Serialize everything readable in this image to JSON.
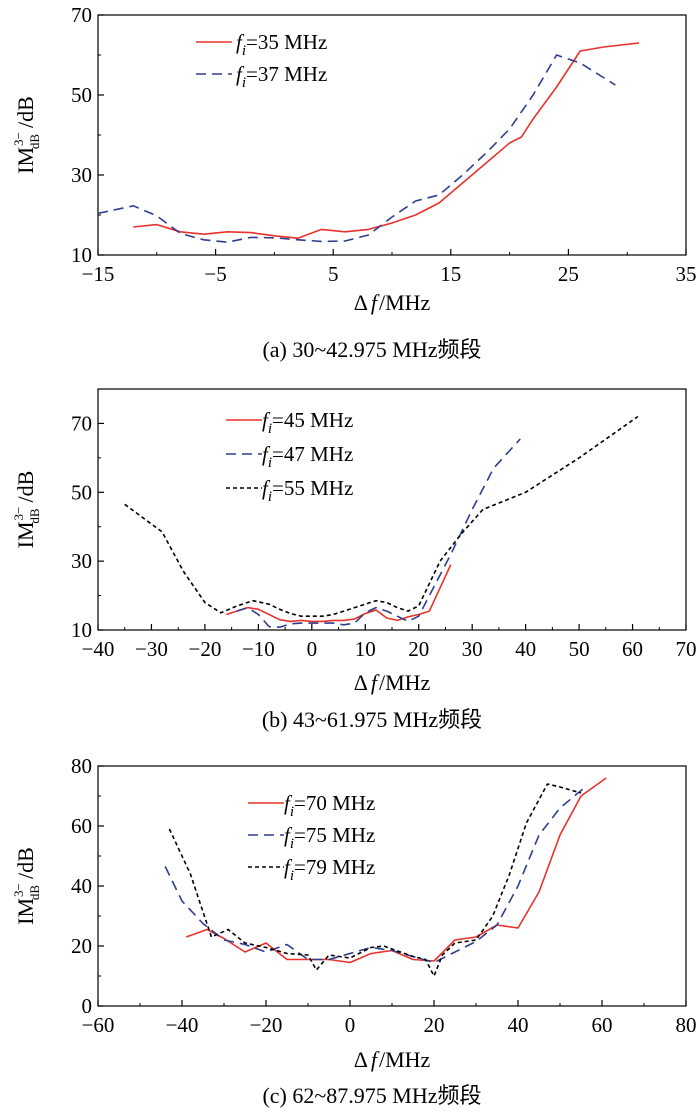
{
  "chart_data": [
    {
      "type": "line",
      "caption": "(a) 30~42.975 MHz频段",
      "xlabel_delta": "Δ",
      "xlabel_f": "f",
      "xlabel_unit": "/MHz",
      "ylabel_main": "IM",
      "ylabel_sup": "3−",
      "ylabel_sub": "dB",
      "ylabel_unit": "/dB",
      "xlim": [
        -15,
        35
      ],
      "ylim": [
        10,
        70
      ],
      "xticks": [
        -15,
        -5,
        5,
        15,
        25,
        35
      ],
      "xtick_labels": [
        "−15",
        "−5",
        "5",
        "15",
        "25",
        "35"
      ],
      "yticks": [
        10,
        30,
        50,
        70
      ],
      "ytick_labels": [
        "10",
        "30",
        "50",
        "70"
      ],
      "legend_prefix": "f",
      "legend_sub": "i",
      "series": [
        {
          "name": "=35 MHz",
          "color": "#e8322b",
          "dash": "solid",
          "x": [
            -12,
            -10,
            -8,
            -6,
            -4,
            -2,
            0,
            2,
            4,
            6,
            8,
            10,
            12,
            14,
            16,
            18,
            20,
            21,
            22,
            24,
            26,
            28,
            31
          ],
          "y": [
            17,
            17.6,
            15.8,
            15.2,
            15.8,
            15.6,
            14.8,
            14.2,
            16.4,
            15.8,
            16.4,
            18,
            20,
            23,
            28,
            33,
            38,
            39.5,
            44,
            52,
            61,
            62,
            63
          ]
        },
        {
          "name": "=37 MHz",
          "color": "#2f3e8f",
          "dash": "dash",
          "x": [
            -15,
            -12,
            -10,
            -8,
            -6,
            -4,
            -2,
            0,
            2,
            4,
            6,
            8,
            10,
            12,
            14,
            16,
            18,
            20,
            22,
            24,
            26,
            29
          ],
          "y": [
            20.4,
            22.3,
            19.8,
            15.4,
            13.8,
            13.2,
            14.4,
            14.3,
            13.8,
            13.4,
            13.5,
            15,
            19.5,
            23.5,
            25,
            30,
            35.5,
            41.5,
            50,
            60,
            58,
            52.5
          ]
        }
      ]
    },
    {
      "type": "line",
      "caption": "(b) 43~61.975 MHz频段",
      "xlabel_delta": "Δ",
      "xlabel_f": "f",
      "xlabel_unit": "/MHz",
      "ylabel_main": "IM",
      "ylabel_sup": "3−",
      "ylabel_sub": "dB",
      "ylabel_unit": "/dB",
      "xlim": [
        -40,
        70
      ],
      "ylim": [
        10,
        80
      ],
      "xticks": [
        -40,
        -30,
        -20,
        -10,
        0,
        10,
        20,
        30,
        40,
        50,
        60,
        70
      ],
      "xtick_labels": [
        "−40",
        "−30",
        "−20",
        "−10",
        "0",
        "10",
        "20",
        "30",
        "40",
        "50",
        "60",
        "70"
      ],
      "yticks": [
        10,
        30,
        50,
        70
      ],
      "ytick_labels": [
        "10",
        "30",
        "50",
        "70"
      ],
      "legend_prefix": "f",
      "legend_sub": "i",
      "series": [
        {
          "name": "=45 MHz",
          "color": "#e8322b",
          "dash": "solid",
          "x": [
            -16,
            -12,
            -10,
            -8,
            -6,
            -4,
            -2,
            0,
            2,
            4,
            6,
            8,
            10,
            12,
            14,
            16,
            18,
            20,
            22,
            26
          ],
          "y": [
            14.5,
            16.5,
            16,
            14.5,
            13,
            12.5,
            12.8,
            12.5,
            12.5,
            12.8,
            12.8,
            13.2,
            14.8,
            15.8,
            13.5,
            12.8,
            13.8,
            14.5,
            15.5,
            29
          ]
        },
        {
          "name": "=47 MHz",
          "color": "#2f3e8f",
          "dash": "dash",
          "x": [
            -14,
            -12,
            -10,
            -8,
            -6,
            -4,
            -2,
            0,
            2,
            4,
            6,
            8,
            10,
            12,
            14,
            16,
            18,
            20,
            26,
            30,
            34,
            39
          ],
          "y": [
            15.5,
            16.5,
            14.5,
            11,
            10.8,
            11.8,
            12,
            12,
            12,
            12,
            11.5,
            12,
            15,
            16.5,
            15.5,
            14,
            12.5,
            14,
            32,
            45,
            57,
            65.5
          ]
        },
        {
          "name": "=55 MHz",
          "color": "#000000",
          "dash": "dot",
          "x": [
            -35,
            -28,
            -24,
            -20,
            -17,
            -14,
            -11,
            -8,
            -6,
            -4,
            -2,
            0,
            2,
            4,
            6,
            8,
            10,
            12,
            14,
            16,
            18,
            20,
            24,
            28,
            32,
            40,
            50,
            61
          ],
          "y": [
            46.5,
            38.5,
            27,
            18,
            15,
            17,
            18.5,
            17.5,
            16,
            14.8,
            14,
            14,
            14,
            14.5,
            15.5,
            16.5,
            17.5,
            18.5,
            18,
            16.5,
            15.5,
            17,
            30,
            38,
            45,
            50,
            60,
            72
          ]
        }
      ]
    },
    {
      "type": "line",
      "caption": "(c) 62~87.975 MHz频段",
      "xlabel_delta": "Δ",
      "xlabel_f": "f",
      "xlabel_unit": "/MHz",
      "ylabel_main": "IM",
      "ylabel_sup": "3−",
      "ylabel_sub": "dB",
      "ylabel_unit": "/dB",
      "xlim": [
        -60,
        80
      ],
      "ylim": [
        0,
        80
      ],
      "xticks": [
        -60,
        -40,
        -20,
        0,
        20,
        40,
        60,
        80
      ],
      "xtick_labels": [
        "−60",
        "−40",
        "−20",
        "0",
        "20",
        "40",
        "60",
        "80"
      ],
      "yticks": [
        0,
        20,
        40,
        60,
        80
      ],
      "ytick_labels": [
        "0",
        "20",
        "40",
        "60",
        "80"
      ],
      "legend_prefix": "f",
      "legend_sub": "i",
      "series": [
        {
          "name": "=70 MHz",
          "color": "#e8322b",
          "dash": "solid",
          "x": [
            -39,
            -34,
            -30,
            -25,
            -20,
            -15,
            -10,
            -5,
            0,
            5,
            10,
            15,
            20,
            25,
            30,
            35,
            40,
            45,
            50,
            55,
            61
          ],
          "y": [
            23,
            25.5,
            22.5,
            18,
            21,
            15.5,
            15.5,
            15.5,
            14.5,
            17.5,
            18.5,
            15.5,
            15,
            22,
            23,
            27,
            26,
            38,
            57,
            70,
            76
          ]
        },
        {
          "name": "=75 MHz",
          "color": "#2f3e8f",
          "dash": "dash",
          "x": [
            -44,
            -40,
            -35,
            -30,
            -25,
            -20,
            -15,
            -10,
            -5,
            0,
            5,
            10,
            15,
            20,
            25,
            30,
            35,
            40,
            45,
            50,
            56
          ],
          "y": [
            46.5,
            35,
            27.5,
            22,
            20.5,
            18,
            20.5,
            15.5,
            15.5,
            17.5,
            19.5,
            18.5,
            16.5,
            14.5,
            18,
            21.5,
            27,
            40,
            57,
            66,
            73
          ]
        },
        {
          "name": "=79 MHz",
          "color": "#000000",
          "dash": "dot",
          "x": [
            -43,
            -38,
            -33,
            -29,
            -25,
            -20,
            -15,
            -10,
            -8,
            -5,
            0,
            5,
            8,
            12,
            15,
            18,
            20,
            22,
            25,
            30,
            34,
            38,
            42,
            47,
            50,
            55
          ],
          "y": [
            59,
            44,
            23,
            25.5,
            21,
            19.5,
            17.5,
            17,
            12,
            17,
            16,
            19.5,
            20,
            18,
            16.5,
            15.5,
            10,
            17,
            21,
            22,
            30,
            44,
            61,
            74,
            73,
            71
          ]
        }
      ]
    }
  ]
}
